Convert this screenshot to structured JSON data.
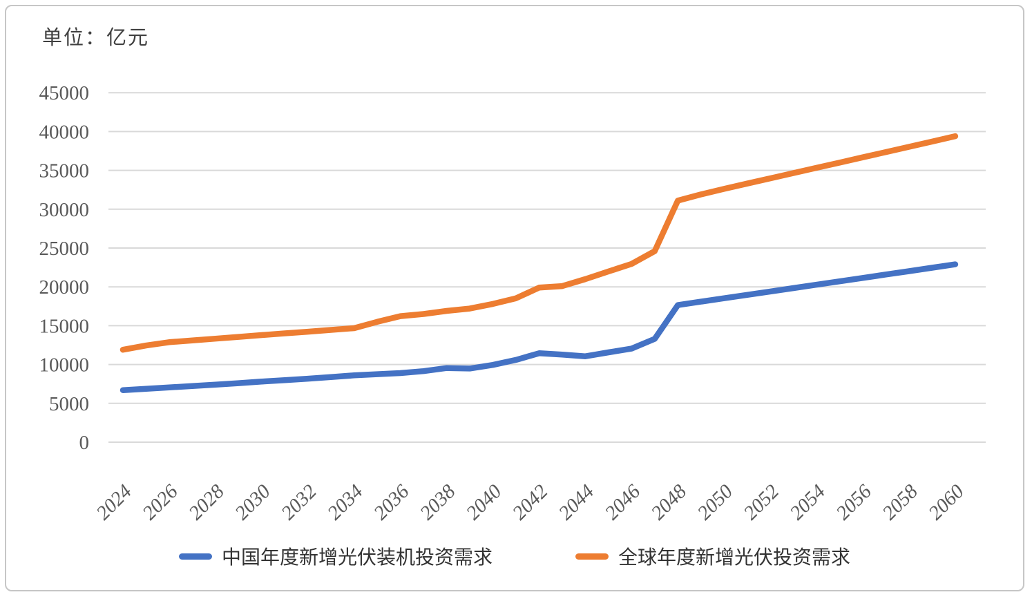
{
  "chart": {
    "unit_label": "单位：亿元"
  },
  "colors": {
    "series_china": "#4472C4",
    "series_global": "#ED7D31",
    "gridline": "#D9D9D9",
    "axis_text": "#595959",
    "card_border": "#C6C6C6"
  },
  "chart_data": {
    "type": "line",
    "title": "单位：亿元",
    "xlabel": "",
    "ylabel": "亿元",
    "ylim": [
      0,
      45000
    ],
    "grid": "horizontal",
    "legend_position": "bottom",
    "y_ticks": [
      0,
      5000,
      10000,
      15000,
      20000,
      25000,
      30000,
      35000,
      40000,
      45000
    ],
    "x_tick_labels": [
      "2024",
      "2026",
      "2028",
      "2030",
      "2032",
      "2034",
      "2036",
      "2038",
      "2040",
      "2042",
      "2044",
      "2046",
      "2048",
      "2050",
      "2052",
      "2054",
      "2056",
      "2058",
      "2060"
    ],
    "x": [
      2024,
      2025,
      2026,
      2027,
      2028,
      2029,
      2030,
      2031,
      2032,
      2033,
      2034,
      2035,
      2036,
      2037,
      2038,
      2039,
      2040,
      2041,
      2042,
      2043,
      2044,
      2045,
      2046,
      2047,
      2048,
      2049,
      2050,
      2051,
      2052,
      2053,
      2054,
      2055,
      2056,
      2057,
      2058,
      2059,
      2060
    ],
    "series": [
      {
        "name": "中国年度新增光伏装机投资需求",
        "color": "#4472C4",
        "values": [
          6700,
          6870,
          7050,
          7230,
          7410,
          7600,
          7800,
          7990,
          8180,
          8390,
          8600,
          8750,
          8900,
          9150,
          9550,
          9480,
          9950,
          10600,
          11450,
          11280,
          11060,
          11570,
          12050,
          13300,
          17650,
          18100,
          18530,
          18970,
          19400,
          19840,
          20280,
          20710,
          21150,
          21590,
          22020,
          22460,
          22900
        ]
      },
      {
        "name": "全球年度新增光伏投资需求",
        "color": "#ED7D31",
        "values": [
          11900,
          12450,
          12870,
          13100,
          13330,
          13560,
          13790,
          14010,
          14230,
          14460,
          14680,
          15500,
          16230,
          16500,
          16900,
          17210,
          17800,
          18530,
          19900,
          20100,
          21000,
          21980,
          22950,
          24600,
          31100,
          31900,
          32620,
          33300,
          33980,
          34650,
          35330,
          36000,
          36680,
          37360,
          38030,
          38710,
          39400
        ]
      }
    ]
  }
}
